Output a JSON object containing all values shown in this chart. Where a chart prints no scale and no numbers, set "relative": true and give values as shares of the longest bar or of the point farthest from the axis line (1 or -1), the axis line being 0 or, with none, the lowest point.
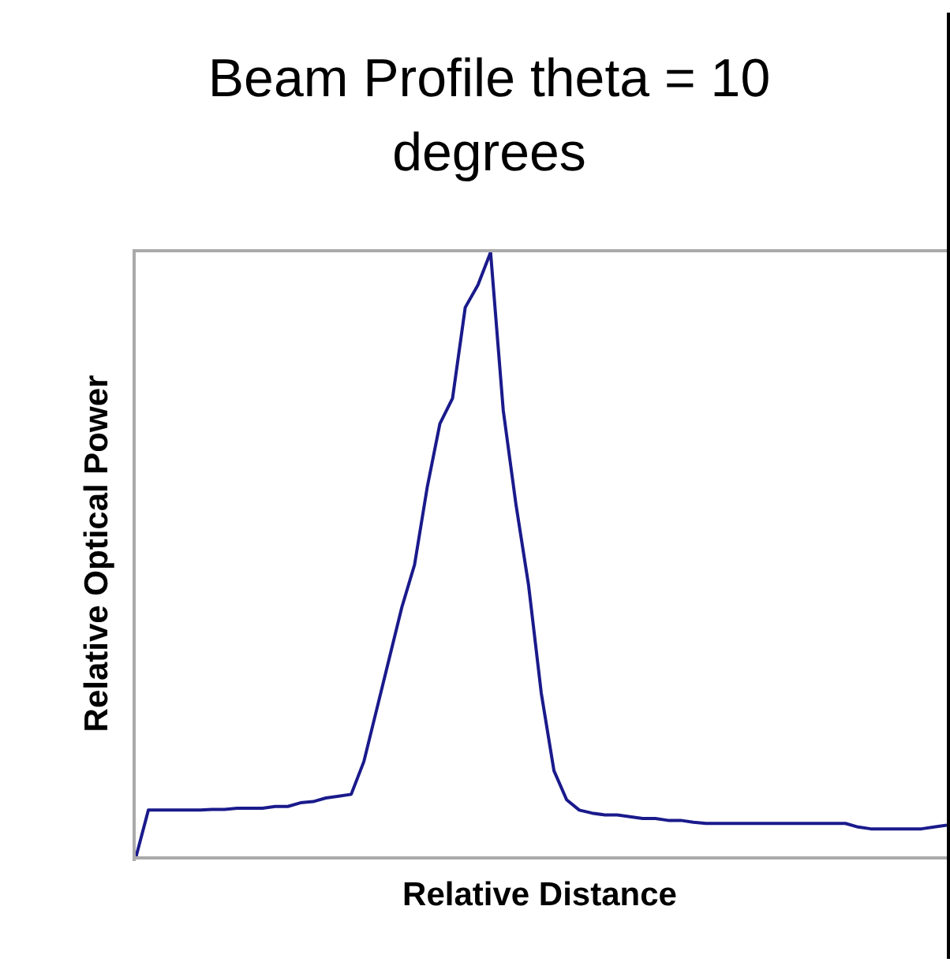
{
  "chart_data": {
    "type": "line",
    "title": "Beam Profile theta = 10 degrees",
    "xlabel": "Relative Distance",
    "ylabel": "Relative Optical Power",
    "relative": true,
    "grid": false,
    "legend": false,
    "marker": "none",
    "line_style": "solid",
    "categories": [
      null,
      null,
      null,
      null,
      null,
      null,
      null,
      null,
      null,
      null,
      null,
      null,
      null,
      null,
      null,
      null,
      null,
      null,
      null,
      null,
      null,
      null,
      null,
      null,
      null,
      null,
      null,
      null,
      null,
      null,
      null,
      null,
      null,
      null,
      null,
      null,
      null,
      null,
      null,
      null,
      null,
      null,
      null,
      null,
      null,
      null,
      null,
      null,
      null,
      null,
      null,
      null,
      null,
      null,
      null,
      null,
      null,
      null,
      null,
      null,
      null,
      null,
      null,
      null,
      null
    ],
    "series": [
      {
        "color": "#1a1a8c",
        "values": [
          0,
          0.079,
          0.079,
          0.079,
          0.079,
          0.079,
          0.08,
          0.08,
          0.082,
          0.082,
          0.082,
          0.085,
          0.085,
          0.091,
          0.093,
          0.099,
          0.102,
          0.105,
          0.159,
          0.244,
          0.329,
          0.414,
          0.484,
          0.612,
          0.717,
          0.759,
          0.909,
          0.946,
          1,
          0.739,
          0.584,
          0.45,
          0.272,
          0.144,
          0.096,
          0.079,
          0.074,
          0.071,
          0.071,
          0.068,
          0.065,
          0.065,
          0.062,
          0.062,
          0.059,
          0.057,
          0.057,
          0.057,
          0.057,
          0.057,
          0.057,
          0.057,
          0.057,
          0.057,
          0.057,
          0.057,
          0.057,
          0.051,
          0.048,
          0.048,
          0.048,
          0.048,
          0.048,
          0.051,
          0.054
        ]
      }
    ]
  }
}
